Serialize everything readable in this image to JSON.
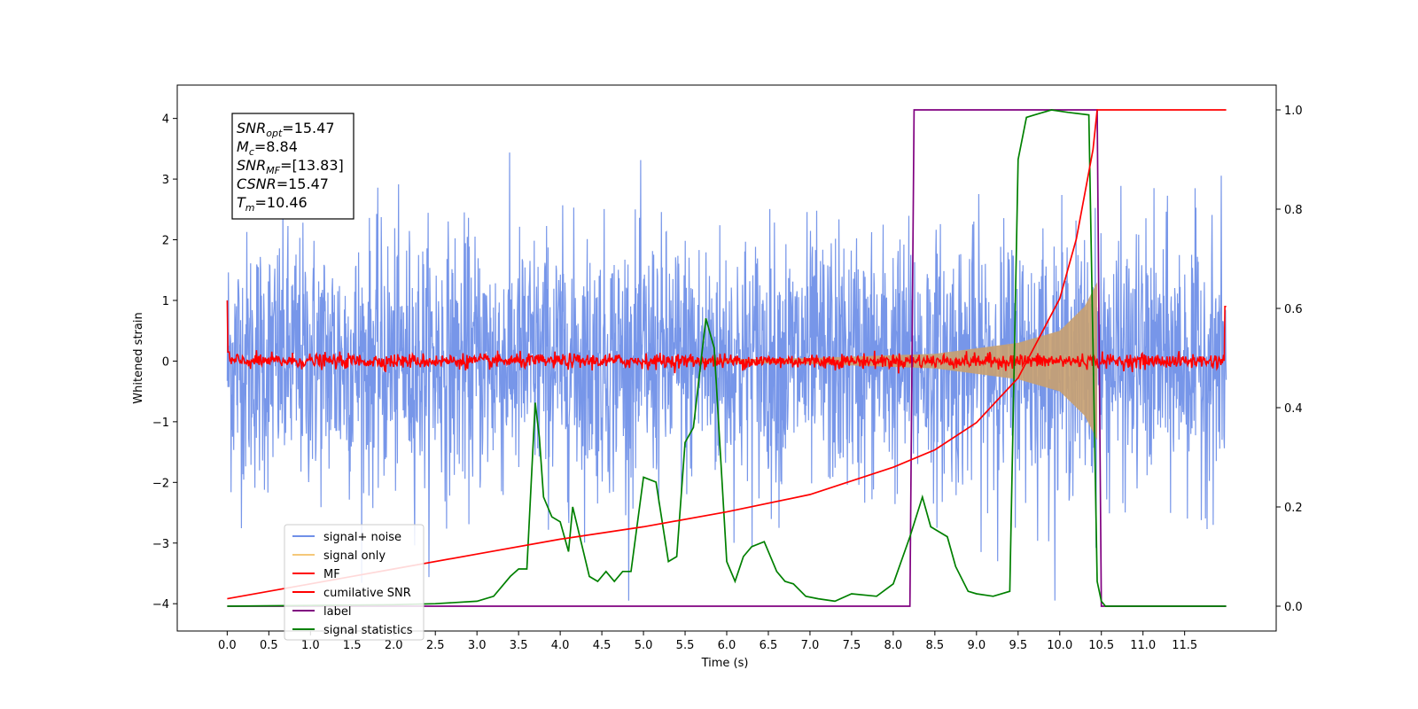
{
  "chart_data": {
    "type": "line",
    "xlabel": "Time (s)",
    "ylabel": "Whitened strain",
    "xlim": [
      -0.6,
      12.6
    ],
    "ylim": [
      -4.45,
      4.55
    ],
    "y2lim": [
      -0.05,
      1.05
    ],
    "xticks": [
      "0.0",
      "0.5",
      "1.0",
      "1.5",
      "2.0",
      "2.5",
      "3.0",
      "3.5",
      "4.0",
      "4.5",
      "5.0",
      "5.5",
      "6.0",
      "6.5",
      "7.0",
      "7.5",
      "8.0",
      "8.5",
      "9.0",
      "9.5",
      "10.0",
      "10.5",
      "11.0",
      "11.5"
    ],
    "yticks": [
      "4",
      "3",
      "2",
      "1",
      "0",
      "−1",
      "−2",
      "−3",
      "−4"
    ],
    "y2ticks": [
      "1.0",
      "0.8",
      "0.6",
      "0.4",
      "0.2",
      "0.0"
    ],
    "textbox": [
      {
        "base": "SNR",
        "sub": "opt",
        "value": "=15.47"
      },
      {
        "base": "M",
        "sub": "c",
        "value": "=8.84"
      },
      {
        "base": "SNR",
        "sub": "MF",
        "value": "=[13.83]"
      },
      {
        "base": "CSNR",
        "sub": "",
        "value": "=15.47"
      },
      {
        "base": "T",
        "sub": "m",
        "value": "=10.46"
      }
    ],
    "legend": {
      "placement": "lower-left",
      "entries": [
        {
          "label": "signal+ noise",
          "color": "#7090e8"
        },
        {
          "label": "signal only",
          "color": "#f5c87a"
        },
        {
          "label": "MF",
          "color": "#ff0000"
        },
        {
          "label": "cumilative SNR",
          "color": "#ff0000"
        },
        {
          "label": "label",
          "color": "#800080"
        },
        {
          "label": "signal statistics",
          "color": "#008000"
        }
      ]
    },
    "series": [
      {
        "name": "signal+ noise",
        "axis": "left",
        "color": "#7090e8",
        "description": "whitened strain noise, amplitude ~±2 std, range −4 to 4, x 0 to 12"
      },
      {
        "name": "signal only",
        "axis": "left",
        "color": "#c8a070",
        "chirp_envelope": {
          "x": [
            5.5,
            7.0,
            8.5,
            9.5,
            10.0,
            10.3,
            10.45
          ],
          "y": [
            0.02,
            0.05,
            0.12,
            0.3,
            0.5,
            0.9,
            1.3
          ]
        }
      },
      {
        "name": "MF",
        "axis": "left",
        "color": "#ff0000",
        "description": "near zero, noise ±0.15, spike to 1.0 at x=0.0 and 0.9 at x=12.0"
      },
      {
        "name": "cumilative SNR",
        "axis": "right",
        "color": "#ff0000",
        "x": [
          0.0,
          1.0,
          2.0,
          3.0,
          4.0,
          5.0,
          6.0,
          7.0,
          8.0,
          8.5,
          9.0,
          9.5,
          10.0,
          10.2,
          10.4,
          10.45,
          10.5,
          12.0
        ],
        "y": [
          0.015,
          0.045,
          0.075,
          0.105,
          0.135,
          0.16,
          0.19,
          0.225,
          0.28,
          0.315,
          0.37,
          0.46,
          0.62,
          0.74,
          0.92,
          1.0,
          1.0,
          1.0
        ]
      },
      {
        "name": "label",
        "axis": "right",
        "color": "#800080",
        "x": [
          0.0,
          8.2,
          8.25,
          10.45,
          10.5,
          12.0
        ],
        "y": [
          0.0,
          0.0,
          1.0,
          1.0,
          0.0,
          0.0
        ]
      },
      {
        "name": "signal statistics",
        "axis": "right",
        "color": "#008000",
        "x": [
          0.0,
          2.0,
          2.5,
          3.0,
          3.2,
          3.4,
          3.5,
          3.6,
          3.7,
          3.75,
          3.8,
          3.9,
          4.0,
          4.1,
          4.15,
          4.25,
          4.35,
          4.45,
          4.55,
          4.65,
          4.75,
          4.85,
          5.0,
          5.15,
          5.3,
          5.4,
          5.5,
          5.6,
          5.75,
          5.85,
          6.0,
          6.1,
          6.2,
          6.3,
          6.45,
          6.6,
          6.7,
          6.8,
          6.95,
          7.1,
          7.3,
          7.5,
          7.8,
          8.0,
          8.2,
          8.35,
          8.45,
          8.55,
          8.65,
          8.75,
          8.9,
          9.0,
          9.2,
          9.4,
          9.5,
          9.6,
          9.7,
          9.9,
          10.1,
          10.35,
          10.45,
          10.5,
          10.55,
          12.0
        ],
        "y": [
          0.0,
          0.003,
          0.005,
          0.01,
          0.02,
          0.06,
          0.075,
          0.075,
          0.41,
          0.34,
          0.22,
          0.18,
          0.17,
          0.11,
          0.2,
          0.13,
          0.06,
          0.05,
          0.07,
          0.05,
          0.07,
          0.07,
          0.26,
          0.25,
          0.09,
          0.1,
          0.33,
          0.36,
          0.58,
          0.52,
          0.09,
          0.05,
          0.1,
          0.12,
          0.13,
          0.07,
          0.05,
          0.045,
          0.02,
          0.015,
          0.01,
          0.025,
          0.02,
          0.045,
          0.14,
          0.22,
          0.16,
          0.15,
          0.14,
          0.08,
          0.03,
          0.025,
          0.02,
          0.03,
          0.9,
          0.985,
          0.99,
          1.0,
          0.995,
          0.99,
          0.05,
          0.01,
          0.0,
          0.0
        ]
      }
    ]
  }
}
